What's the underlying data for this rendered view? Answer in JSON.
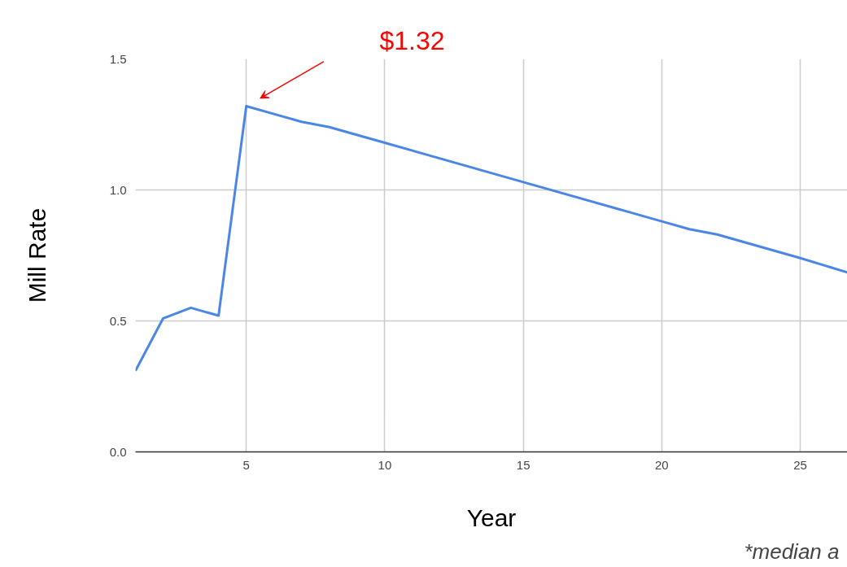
{
  "chart_data": {
    "type": "line",
    "xlabel": "Year",
    "ylabel": "Mill Rate",
    "x": [
      1,
      2,
      3,
      4,
      5,
      6,
      7,
      8,
      10,
      15,
      20,
      21,
      22,
      25,
      26.7
    ],
    "series": [
      {
        "color": "#4a86e8",
        "values": [
          0.31,
          0.51,
          0.55,
          0.52,
          1.32,
          1.29,
          1.26,
          1.24,
          1.18,
          1.03,
          0.88,
          0.85,
          0.83,
          0.74,
          0.685
        ]
      }
    ],
    "xlim": [
      1,
      26.7
    ],
    "ylim": [
      0,
      1.5
    ],
    "xticks": [
      5,
      10,
      15,
      20,
      25
    ],
    "yticks": [
      {
        "value": 0,
        "label": "0.0"
      },
      {
        "value": 0.5,
        "label": "0.5"
      },
      {
        "value": 1,
        "label": "1.0"
      },
      {
        "value": 1.5,
        "label": "1.5"
      }
    ],
    "grid": true,
    "marker": "none",
    "line_style": "solid",
    "annotations": [
      "$1.32",
      "*median a"
    ]
  }
}
